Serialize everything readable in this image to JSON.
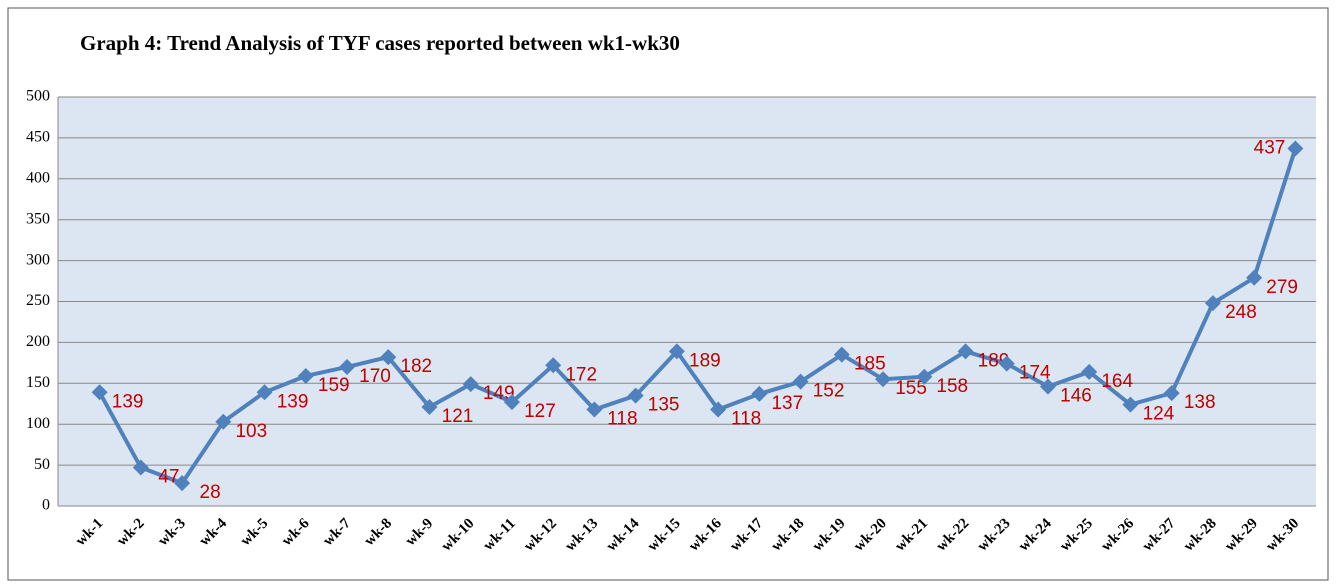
{
  "chart_data": {
    "type": "line",
    "title": "Graph 4: Trend Analysis of TYF cases reported between wk1-wk30",
    "categories": [
      "wk-1",
      "wk-2",
      "wk-3",
      "wk-4",
      "wk-5",
      "wk-6",
      "wk-7",
      "wk-8",
      "wk-9",
      "wk-10",
      "wk-11",
      "wk-12",
      "wk-13",
      "wk-14",
      "wk-15",
      "wk-16",
      "wk-17",
      "wk-18",
      "wk-19",
      "wk-20",
      "wk-21",
      "wk-22",
      "wk-23",
      "wk-24",
      "wk-25",
      "wk-26",
      "wk-27",
      "wk-28",
      "wk-29",
      "wk-30"
    ],
    "series": [
      {
        "name": "TYF cases",
        "color": "#4f81bd",
        "values": [
          139,
          47,
          28,
          103,
          139,
          159,
          170,
          182,
          121,
          149,
          127,
          172,
          118,
          135,
          189,
          118,
          137,
          152,
          185,
          155,
          158,
          189,
          174,
          146,
          164,
          124,
          138,
          248,
          279,
          437
        ]
      }
    ],
    "ylim": [
      0,
      500
    ],
    "yticks": [
      0,
      50,
      100,
      150,
      200,
      250,
      300,
      350,
      400,
      450,
      500
    ],
    "grid": true
  }
}
